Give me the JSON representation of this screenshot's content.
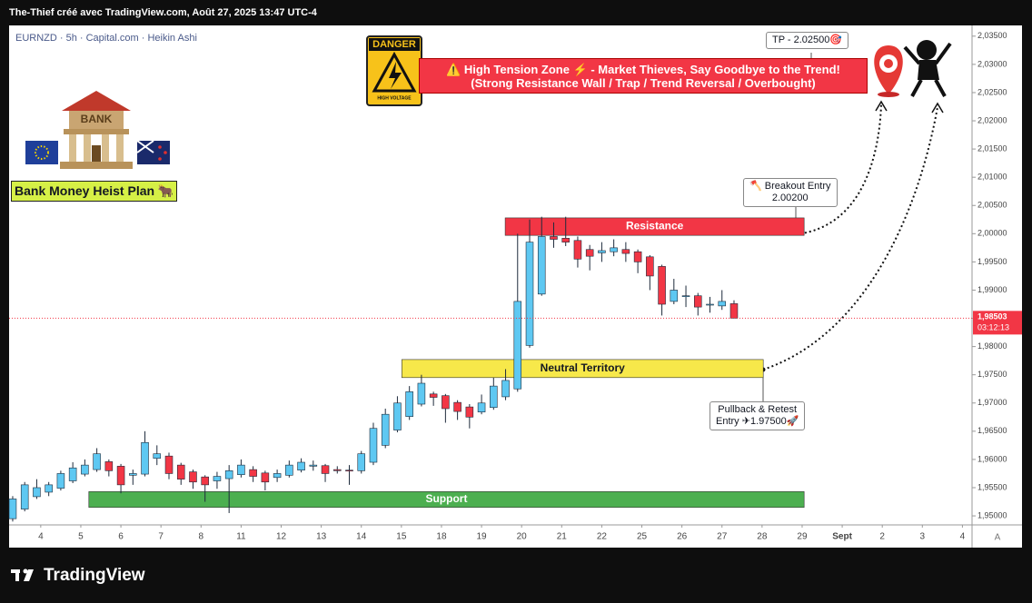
{
  "header": "The-Thief créé avec TradingView.com, Août 27, 2025 13:47 UTC-4",
  "chart_data": {
    "type": "candlestick",
    "legend": "EURNZD · 5h · Capital.com · Heikin Ashi",
    "up_color": "#5ec8f2",
    "down_color": "#f23645",
    "xlim": [
      -0.79,
      23.24
    ],
    "ylim": [
      1.9484,
      2.0369
    ],
    "xticks": [
      {
        "value": 0,
        "label": "4"
      },
      {
        "value": 1,
        "label": "5"
      },
      {
        "value": 2,
        "label": "6"
      },
      {
        "value": 3,
        "label": "7"
      },
      {
        "value": 4,
        "label": "8"
      },
      {
        "value": 5,
        "label": "11"
      },
      {
        "value": 6,
        "label": "12"
      },
      {
        "value": 7,
        "label": "13"
      },
      {
        "value": 8,
        "label": "14"
      },
      {
        "value": 9,
        "label": "15"
      },
      {
        "value": 10,
        "label": "18"
      },
      {
        "value": 11,
        "label": "19"
      },
      {
        "value": 12,
        "label": "20"
      },
      {
        "value": 13,
        "label": "21"
      },
      {
        "value": 14,
        "label": "22"
      },
      {
        "value": 15,
        "label": "25"
      },
      {
        "value": 16,
        "label": "26"
      },
      {
        "value": 17,
        "label": "27"
      },
      {
        "value": 18,
        "label": "28"
      },
      {
        "value": 19,
        "label": "29"
      },
      {
        "value": 20,
        "label": "Sept"
      },
      {
        "value": 21,
        "label": "2"
      },
      {
        "value": 22,
        "label": "3"
      },
      {
        "value": 23,
        "label": "4"
      }
    ],
    "yticks": [
      {
        "value": 1.95,
        "label": "1,95000"
      },
      {
        "value": 1.955,
        "label": "1,95500"
      },
      {
        "value": 1.96,
        "label": "1,96000"
      },
      {
        "value": 1.965,
        "label": "1,96500"
      },
      {
        "value": 1.97,
        "label": "1,97000"
      },
      {
        "value": 1.975,
        "label": "1,97500"
      },
      {
        "value": 1.98,
        "label": "1,98000"
      },
      {
        "value": 1.985,
        "label": "1,98500"
      },
      {
        "value": 1.99,
        "label": "1,99000"
      },
      {
        "value": 1.995,
        "label": "1,99500"
      },
      {
        "value": 2.0,
        "label": "2,00000"
      },
      {
        "value": 2.005,
        "label": "2,00500"
      },
      {
        "value": 2.01,
        "label": "2,01000"
      },
      {
        "value": 2.015,
        "label": "2,01500"
      },
      {
        "value": 2.02,
        "label": "2,02000"
      },
      {
        "value": 2.025,
        "label": "2,02500"
      },
      {
        "value": 2.03,
        "label": "2,03000"
      },
      {
        "value": 2.035,
        "label": "2,03500"
      }
    ],
    "x": [
      -0.7,
      -0.4,
      -0.1,
      0.2,
      0.5,
      0.8,
      1.1,
      1.4,
      1.7,
      2.0,
      2.3,
      2.6,
      2.9,
      3.2,
      3.5,
      3.8,
      4.1,
      4.4,
      4.7,
      5.0,
      5.3,
      5.6,
      5.9,
      6.2,
      6.5,
      6.8,
      7.1,
      7.4,
      7.7,
      8.0,
      8.3,
      8.6,
      8.9,
      9.2,
      9.5,
      9.8,
      10.1,
      10.4,
      10.7,
      11.0,
      11.3,
      11.6,
      11.9,
      12.2,
      12.5,
      12.8,
      13.1,
      13.4,
      13.7,
      14.0,
      14.3,
      14.6,
      14.9,
      15.2,
      15.5,
      15.8,
      16.1,
      16.4,
      16.7,
      17.0,
      17.3
    ],
    "candles": [
      [
        1.9495,
        1.9535,
        1.949,
        1.953
      ],
      [
        1.9512,
        1.956,
        1.9508,
        1.9555
      ],
      [
        1.9534,
        1.9565,
        1.953,
        1.955
      ],
      [
        1.9542,
        1.956,
        1.9535,
        1.9555
      ],
      [
        1.9549,
        1.958,
        1.9545,
        1.9575
      ],
      [
        1.9562,
        1.9595,
        1.9558,
        1.9585
      ],
      [
        1.9574,
        1.96,
        1.957,
        1.959
      ],
      [
        1.9582,
        1.962,
        1.9578,
        1.961
      ],
      [
        1.9596,
        1.96,
        1.957,
        1.958
      ],
      [
        1.9588,
        1.9592,
        1.954,
        1.9555
      ],
      [
        1.9572,
        1.9582,
        1.9555,
        1.9575
      ],
      [
        1.9574,
        1.965,
        1.957,
        1.963
      ],
      [
        1.9602,
        1.9625,
        1.959,
        1.961
      ],
      [
        1.9606,
        1.9612,
        1.9565,
        1.9575
      ],
      [
        1.959,
        1.9594,
        1.9555,
        1.9565
      ],
      [
        1.9578,
        1.9582,
        1.9548,
        1.956
      ],
      [
        1.9569,
        1.9572,
        1.9525,
        1.9555
      ],
      [
        1.9562,
        1.9578,
        1.9548,
        1.957
      ],
      [
        1.9566,
        1.959,
        1.9505,
        1.958
      ],
      [
        1.9573,
        1.96,
        1.9568,
        1.959
      ],
      [
        1.9582,
        1.9588,
        1.956,
        1.957
      ],
      [
        1.9576,
        1.958,
        1.9545,
        1.956
      ],
      [
        1.9568,
        1.9582,
        1.956,
        1.9575
      ],
      [
        1.9572,
        1.9598,
        1.9568,
        1.959
      ],
      [
        1.9581,
        1.9602,
        1.9577,
        1.9595
      ],
      [
        1.9588,
        1.9598,
        1.958,
        1.959
      ],
      [
        1.9589,
        1.9592,
        1.956,
        1.9575
      ],
      [
        1.9582,
        1.9588,
        1.9575,
        1.958
      ],
      [
        1.9581,
        1.959,
        1.9555,
        1.958
      ],
      [
        1.958,
        1.9615,
        1.9575,
        1.961
      ],
      [
        1.9595,
        1.9665,
        1.959,
        1.9655
      ],
      [
        1.9625,
        1.969,
        1.962,
        1.968
      ],
      [
        1.9652,
        1.9712,
        1.9648,
        1.97
      ],
      [
        1.9676,
        1.973,
        1.967,
        1.972
      ],
      [
        1.9698,
        1.975,
        1.9694,
        1.9735
      ],
      [
        1.9716,
        1.972,
        1.9695,
        1.971
      ],
      [
        1.9713,
        1.9716,
        1.9665,
        1.969
      ],
      [
        1.9701,
        1.9705,
        1.967,
        1.9685
      ],
      [
        1.9693,
        1.9698,
        1.9655,
        1.9675
      ],
      [
        1.9684,
        1.9715,
        1.968,
        1.97
      ],
      [
        1.9692,
        1.9745,
        1.9688,
        1.973
      ],
      [
        1.9711,
        1.976,
        1.9705,
        1.974
      ],
      [
        1.9725,
        2.0,
        1.972,
        1.988
      ],
      [
        1.9802,
        2.0025,
        1.9798,
        1.9985
      ],
      [
        1.9893,
        2.003,
        1.989,
        1.9995
      ],
      [
        1.9995,
        2.002,
        1.9975,
        1.999
      ],
      [
        1.9992,
        2.003,
        1.9978,
        1.9985
      ],
      [
        1.9988,
        1.9995,
        1.994,
        1.9955
      ],
      [
        1.9972,
        1.998,
        1.9935,
        1.996
      ],
      [
        1.9966,
        1.9985,
        1.995,
        1.997
      ],
      [
        1.9968,
        1.999,
        1.996,
        1.9975
      ],
      [
        1.9972,
        1.9985,
        1.995,
        1.9965
      ],
      [
        1.9968,
        1.9972,
        1.993,
        1.995
      ],
      [
        1.9959,
        1.9962,
        1.99,
        1.9925
      ],
      [
        1.9942,
        1.9945,
        1.9855,
        1.9875
      ],
      [
        1.988,
        1.992,
        1.9875,
        1.99
      ],
      [
        1.989,
        1.9908,
        1.987,
        1.989
      ],
      [
        1.989,
        1.9895,
        1.9855,
        1.987
      ],
      [
        1.9875,
        1.9888,
        1.986,
        1.9875
      ],
      [
        1.9872,
        1.99,
        1.9865,
        1.988
      ],
      [
        1.9876,
        1.9882,
        1.985,
        1.98503
      ]
    ],
    "last_price": {
      "value": 1.98503,
      "label": "1,98503"
    },
    "countdown": "03:12:13",
    "zones": [
      {
        "label": "Resistance",
        "x": [
          11.59,
          19.05
        ],
        "y": [
          1.9997,
          2.0028
        ],
        "color": "#f23645",
        "text_color": "#ffffff"
      },
      {
        "label": "Neutral Territory",
        "x": [
          9.01,
          18.03
        ],
        "y": [
          1.9745,
          1.9777
        ],
        "color": "#f7e84a",
        "text_color": "#131722"
      },
      {
        "label": "Support",
        "x": [
          1.2,
          19.05
        ],
        "y": [
          1.9515,
          1.9543
        ],
        "color": "#4caf50",
        "text_color": "#ffffff"
      }
    ]
  },
  "annotations": {
    "tp": "TP - 2.02500🎯",
    "breakout": [
      "🪓 Breakout Entry",
      "2.00200"
    ],
    "pullback": [
      "Pullback & Retest",
      "Entry ✈1.97500🚀"
    ],
    "banner": [
      "⚠️ High Tension Zone ⚡ - Market Thieves, Say Goodbye to the Trend!",
      "(Strong Resistance Wall / Trap / Trend Reversal / Overbought)"
    ],
    "plan": "Bank Money Heist Plan 🐂",
    "bank": "BANK",
    "danger": "DANGER",
    "voltage": "HIGH VOLTAGE"
  },
  "footer": "TradingView",
  "corner": "A"
}
